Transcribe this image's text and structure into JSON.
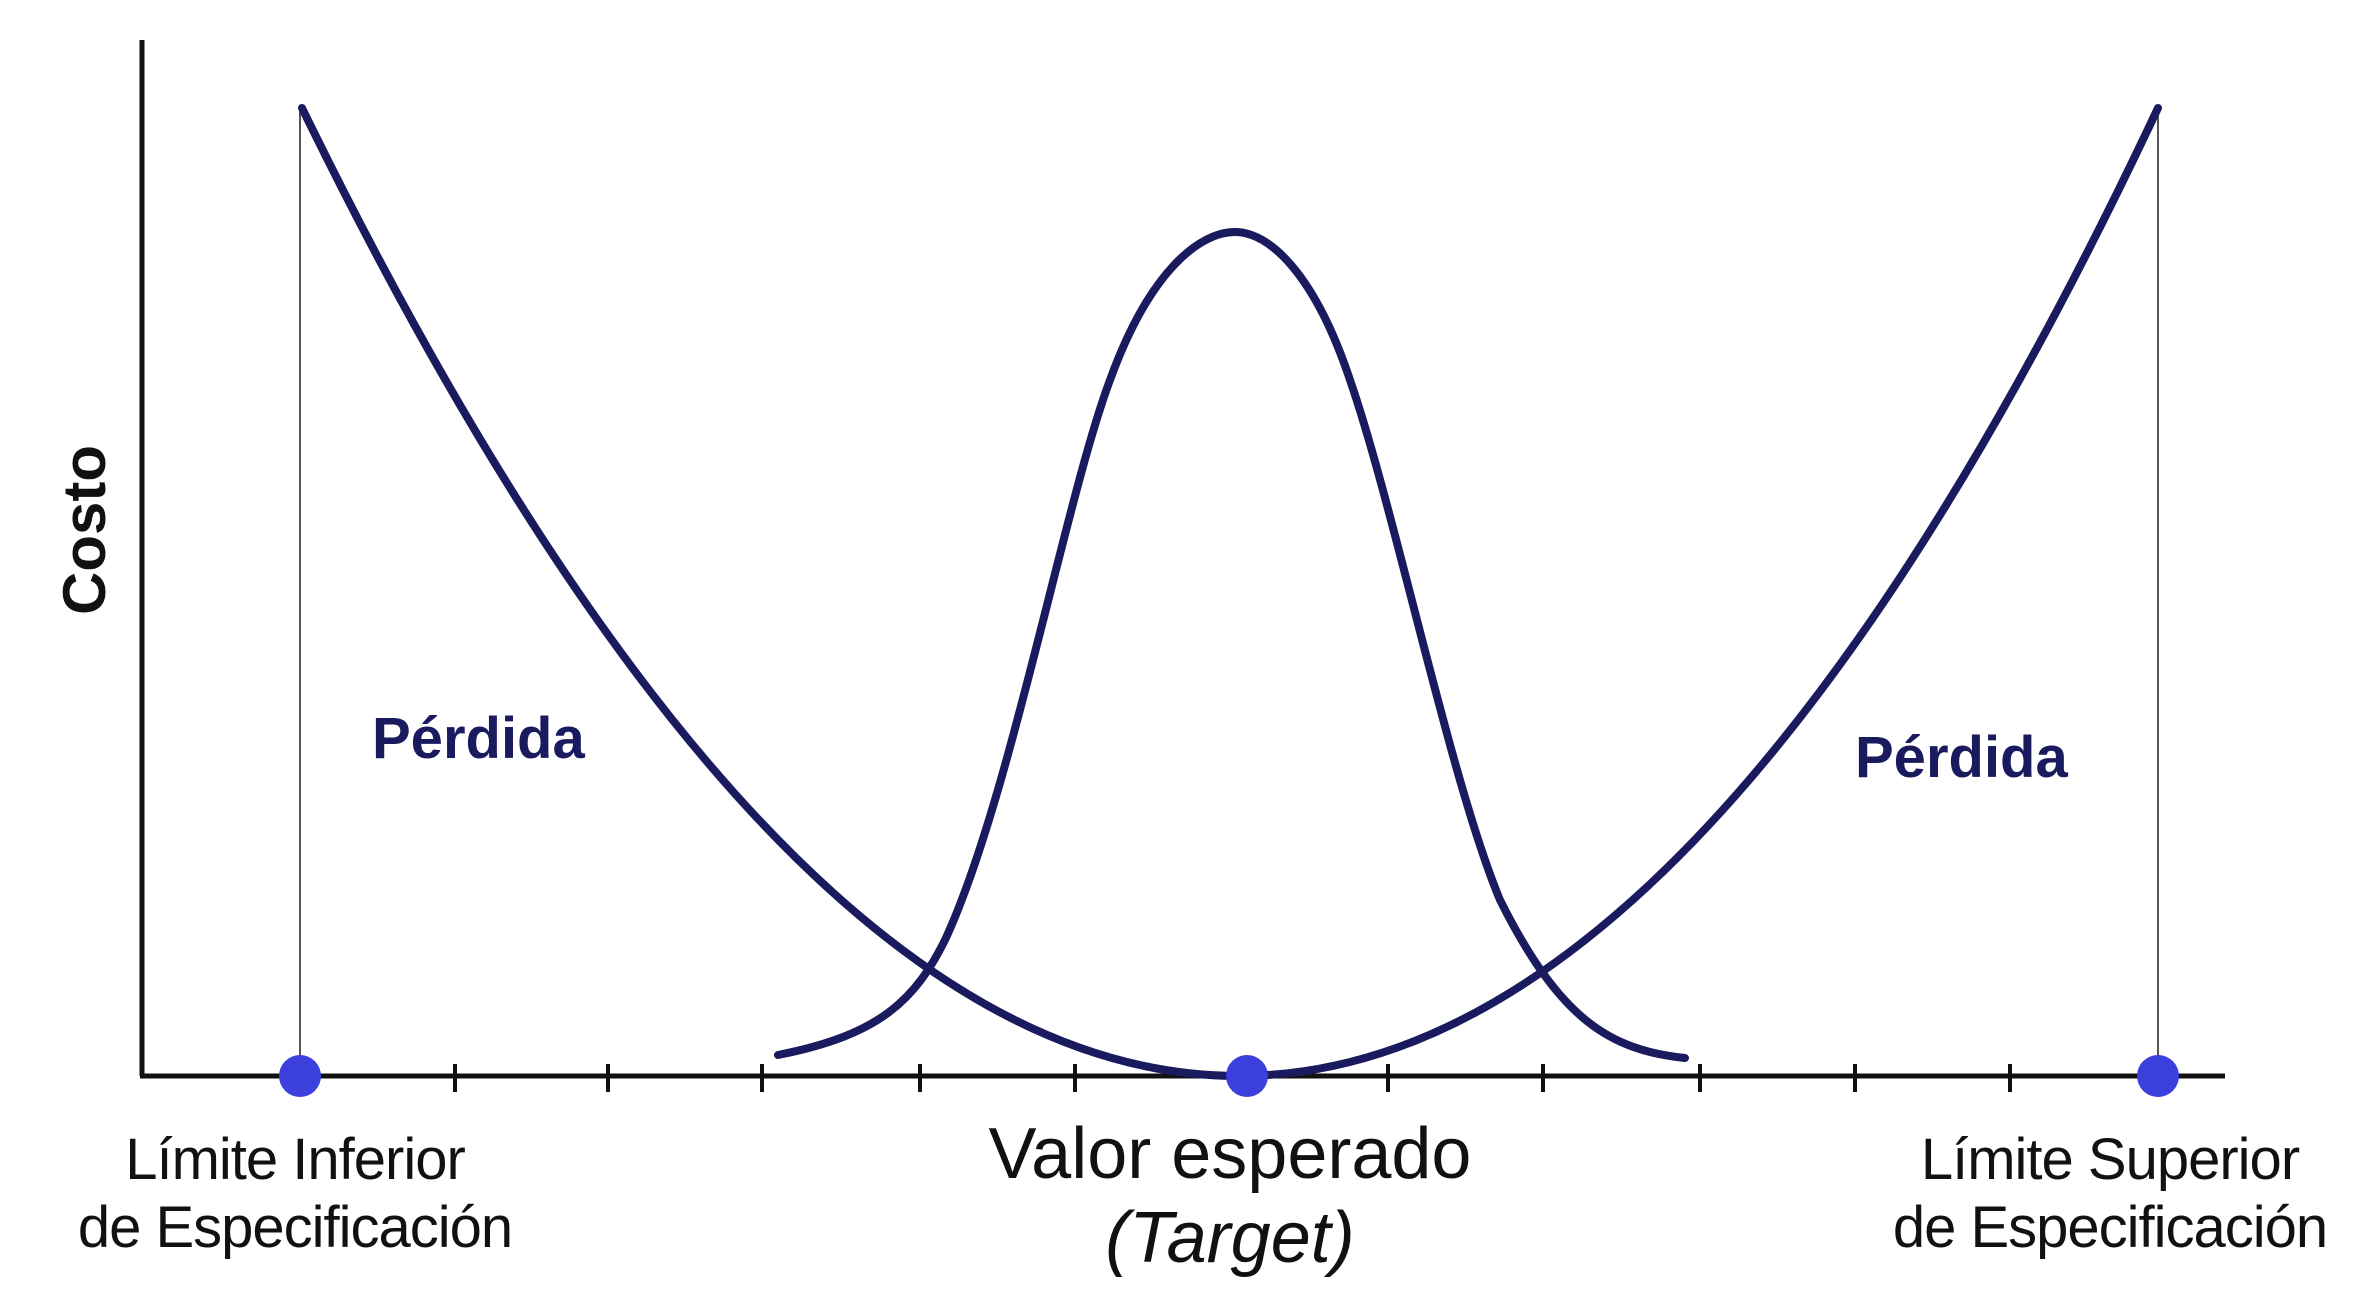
{
  "y_axis_label": "Costo",
  "loss_label_left": "Pérdida",
  "loss_label_right": "Pérdida",
  "lower_limit": {
    "line1": "Límite Inferior",
    "line2": "de Especificación"
  },
  "upper_limit": {
    "line1": "Límite Superior",
    "line2": "de Especificación"
  },
  "target": {
    "line1": "Valor esperado",
    "line2": "(Target)"
  },
  "colors": {
    "curve": "#1a1a5e",
    "marker": "#3b3fdb",
    "axis": "#111111",
    "guide": "#555555"
  },
  "marker_count": 3,
  "tick_count": 12
}
